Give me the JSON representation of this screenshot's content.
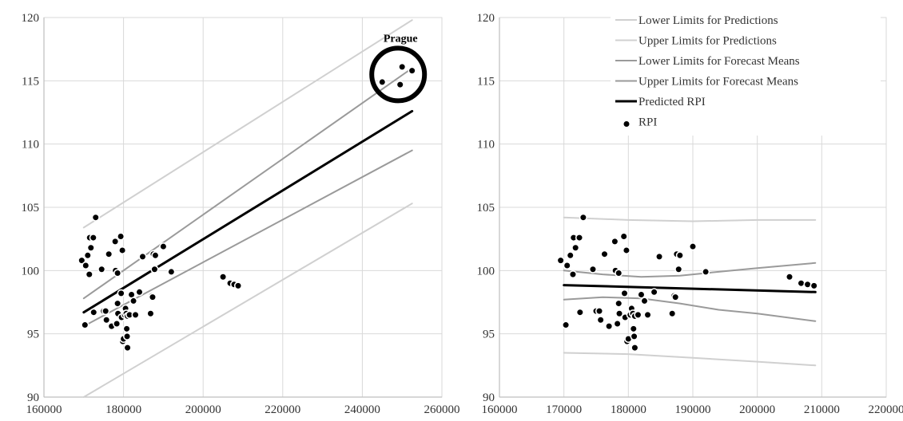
{
  "colors": {
    "pred_limits": "#d0d0d0",
    "mean_limits": "#9a9a9a",
    "predicted": "#000000",
    "points": "#000000",
    "grid": "#d9d9d9",
    "axis": "#bfbfbf"
  },
  "chart_data": [
    {
      "type": "scatter",
      "title": "",
      "xlabel": "",
      "ylabel": "",
      "xlim": [
        160000,
        260000
      ],
      "ylim": [
        90,
        120
      ],
      "xticks": [
        "160000",
        "180000",
        "200000",
        "220000",
        "240000",
        "260000"
      ],
      "yticks": [
        "90",
        "95",
        "100",
        "105",
        "110",
        "115",
        "120"
      ],
      "grid": true,
      "annotation": {
        "text": "Prague",
        "x": 249000,
        "y": 115.5
      },
      "points": [
        [
          169500,
          100.8
        ],
        [
          170300,
          95.7
        ],
        [
          170500,
          100.4
        ],
        [
          171000,
          101.2
        ],
        [
          171400,
          99.7
        ],
        [
          171500,
          102.6
        ],
        [
          171800,
          101.8
        ],
        [
          172400,
          102.6
        ],
        [
          172500,
          96.7
        ],
        [
          173000,
          104.2
        ],
        [
          174500,
          100.1
        ],
        [
          175000,
          96.8
        ],
        [
          175500,
          96.8
        ],
        [
          175700,
          96.1
        ],
        [
          176300,
          101.3
        ],
        [
          177000,
          95.6
        ],
        [
          177900,
          102.3
        ],
        [
          178000,
          100.0
        ],
        [
          178300,
          95.8
        ],
        [
          178500,
          99.8
        ],
        [
          178500,
          97.4
        ],
        [
          178600,
          96.6
        ],
        [
          179300,
          102.7
        ],
        [
          179400,
          98.2
        ],
        [
          179500,
          96.3
        ],
        [
          179700,
          101.6
        ],
        [
          179800,
          94.4
        ],
        [
          180000,
          94.6
        ],
        [
          180300,
          96.5
        ],
        [
          180500,
          97.0
        ],
        [
          180700,
          96.6
        ],
        [
          180800,
          95.4
        ],
        [
          180900,
          94.8
        ],
        [
          181000,
          96.4
        ],
        [
          181000,
          93.9
        ],
        [
          181500,
          96.5
        ],
        [
          182000,
          98.1
        ],
        [
          182500,
          97.6
        ],
        [
          183000,
          96.5
        ],
        [
          184000,
          98.3
        ],
        [
          184800,
          101.1
        ],
        [
          186800,
          96.6
        ],
        [
          187100,
          98.0
        ],
        [
          187300,
          97.9
        ],
        [
          187500,
          101.3
        ],
        [
          187800,
          100.1
        ],
        [
          188000,
          101.2
        ],
        [
          190000,
          101.9
        ],
        [
          192000,
          99.9
        ],
        [
          205000,
          99.5
        ],
        [
          206800,
          99.0
        ],
        [
          207800,
          98.9
        ],
        [
          208800,
          98.8
        ],
        [
          245000,
          114.9
        ],
        [
          249500,
          114.7
        ],
        [
          250000,
          116.1
        ],
        [
          252500,
          115.8
        ]
      ],
      "lines": [
        {
          "kind": "lower_pred",
          "x": [
            170000,
            252500
          ],
          "y": [
            90.0,
            105.3
          ]
        },
        {
          "kind": "upper_pred",
          "x": [
            170000,
            252500
          ],
          "y": [
            103.4,
            119.8
          ]
        },
        {
          "kind": "lower_mean",
          "x": [
            170000,
            252500
          ],
          "y": [
            95.6,
            109.5
          ]
        },
        {
          "kind": "upper_mean",
          "x": [
            170000,
            252500
          ],
          "y": [
            97.8,
            116.0
          ]
        },
        {
          "kind": "predicted",
          "x": [
            170000,
            252500
          ],
          "y": [
            96.7,
            112.6
          ]
        }
      ]
    },
    {
      "type": "scatter",
      "title": "",
      "xlabel": "",
      "ylabel": "",
      "xlim": [
        160000,
        220000
      ],
      "ylim": [
        90,
        120
      ],
      "xticks": [
        "160000",
        "170000",
        "180000",
        "190000",
        "200000",
        "210000",
        "220000"
      ],
      "yticks": [
        "90",
        "95",
        "100",
        "105",
        "110",
        "115",
        "120"
      ],
      "grid": true,
      "legend_position": "top-right",
      "legend": [
        {
          "label": "Lower Limits for Predictions",
          "kind": "lower_pred"
        },
        {
          "label": "Upper Limits for Predictions",
          "kind": "upper_pred"
        },
        {
          "label": "Lower Limits for Forecast Means",
          "kind": "lower_mean"
        },
        {
          "label": "Upper Limits for Forecast Means",
          "kind": "upper_mean"
        },
        {
          "label": "Predicted RPI",
          "kind": "predicted"
        },
        {
          "label": "RPI",
          "kind": "points"
        }
      ],
      "points": [
        [
          169500,
          100.8
        ],
        [
          170300,
          95.7
        ],
        [
          170500,
          100.4
        ],
        [
          171000,
          101.2
        ],
        [
          171400,
          99.7
        ],
        [
          171500,
          102.6
        ],
        [
          171800,
          101.8
        ],
        [
          172400,
          102.6
        ],
        [
          172500,
          96.7
        ],
        [
          173000,
          104.2
        ],
        [
          174500,
          100.1
        ],
        [
          175000,
          96.8
        ],
        [
          175500,
          96.8
        ],
        [
          175700,
          96.1
        ],
        [
          176300,
          101.3
        ],
        [
          177000,
          95.6
        ],
        [
          177900,
          102.3
        ],
        [
          178000,
          100.0
        ],
        [
          178300,
          95.8
        ],
        [
          178500,
          99.8
        ],
        [
          178500,
          97.4
        ],
        [
          178600,
          96.6
        ],
        [
          179300,
          102.7
        ],
        [
          179400,
          98.2
        ],
        [
          179500,
          96.3
        ],
        [
          179700,
          101.6
        ],
        [
          179800,
          94.4
        ],
        [
          180000,
          94.6
        ],
        [
          180300,
          96.5
        ],
        [
          180500,
          97.0
        ],
        [
          180700,
          96.6
        ],
        [
          180800,
          95.4
        ],
        [
          180900,
          94.8
        ],
        [
          181000,
          96.4
        ],
        [
          181000,
          93.9
        ],
        [
          181500,
          96.5
        ],
        [
          182000,
          98.1
        ],
        [
          182500,
          97.6
        ],
        [
          183000,
          96.5
        ],
        [
          184000,
          98.3
        ],
        [
          184800,
          101.1
        ],
        [
          186800,
          96.6
        ],
        [
          187100,
          98.0
        ],
        [
          187300,
          97.9
        ],
        [
          187500,
          101.3
        ],
        [
          187800,
          100.1
        ],
        [
          188000,
          101.2
        ],
        [
          190000,
          101.9
        ],
        [
          192000,
          99.9
        ],
        [
          205000,
          99.5
        ],
        [
          206800,
          99.0
        ],
        [
          207800,
          98.9
        ],
        [
          208800,
          98.8
        ]
      ],
      "lines": [
        {
          "kind": "lower_pred",
          "x": [
            170000,
            180000,
            190000,
            200000,
            209000
          ],
          "y": [
            93.5,
            93.4,
            93.1,
            92.8,
            92.5
          ]
        },
        {
          "kind": "upper_pred",
          "x": [
            170000,
            180000,
            190000,
            200000,
            209000
          ],
          "y": [
            104.2,
            104.0,
            103.9,
            104.0,
            104.0
          ]
        },
        {
          "kind": "lower_mean",
          "x": [
            170000,
            176000,
            182000,
            188000,
            194000,
            200000,
            209000
          ],
          "y": [
            97.7,
            97.9,
            97.8,
            97.4,
            96.9,
            96.6,
            96.0
          ]
        },
        {
          "kind": "upper_mean",
          "x": [
            170000,
            176000,
            182000,
            188000,
            194000,
            200000,
            209000
          ],
          "y": [
            100.0,
            99.7,
            99.5,
            99.6,
            99.9,
            100.2,
            100.6
          ]
        },
        {
          "kind": "predicted",
          "x": [
            170000,
            209000
          ],
          "y": [
            98.85,
            98.3
          ]
        }
      ]
    }
  ]
}
